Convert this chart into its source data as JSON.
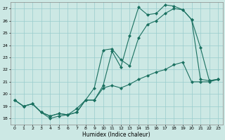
{
  "xlabel": "Humidex (Indice chaleur)",
  "xlim": [
    -0.5,
    23.5
  ],
  "ylim": [
    17.5,
    27.5
  ],
  "yticks": [
    18,
    19,
    20,
    21,
    22,
    23,
    24,
    25,
    26,
    27
  ],
  "xticks": [
    0,
    1,
    2,
    3,
    4,
    5,
    6,
    7,
    8,
    9,
    10,
    11,
    12,
    13,
    14,
    15,
    16,
    17,
    18,
    19,
    20,
    21,
    22,
    23
  ],
  "bg_color": "#cce8e4",
  "line_color": "#1a7060",
  "grid_color": "#99cccc",
  "lines": [
    {
      "x": [
        0,
        1,
        2,
        3,
        4,
        5,
        6,
        7,
        8,
        9,
        10,
        11,
        12,
        13,
        14,
        15,
        16,
        17,
        18,
        19,
        20,
        21,
        22,
        23
      ],
      "y": [
        19.5,
        19.0,
        19.2,
        18.5,
        18.0,
        18.2,
        18.3,
        18.8,
        19.5,
        19.5,
        20.7,
        23.5,
        22.2,
        24.8,
        27.1,
        26.5,
        26.6,
        27.3,
        27.2,
        26.9,
        26.1,
        21.2,
        21.1,
        21.2
      ]
    },
    {
      "x": [
        0,
        1,
        2,
        3,
        4,
        5,
        6,
        7,
        8,
        9,
        10,
        11,
        12,
        13,
        14,
        15,
        16,
        17,
        18,
        19,
        20,
        21,
        22,
        23
      ],
      "y": [
        19.5,
        19.0,
        19.2,
        18.5,
        18.2,
        18.4,
        18.3,
        18.5,
        19.5,
        20.5,
        23.6,
        23.7,
        22.8,
        22.3,
        24.6,
        25.7,
        26.0,
        26.6,
        27.0,
        26.9,
        26.1,
        23.8,
        21.1,
        21.2
      ]
    },
    {
      "x": [
        0,
        1,
        2,
        3,
        4,
        5,
        6,
        7,
        8,
        9,
        10,
        11,
        12,
        13,
        14,
        15,
        16,
        17,
        18,
        19,
        20,
        21,
        22,
        23
      ],
      "y": [
        19.5,
        19.0,
        19.2,
        18.5,
        18.2,
        18.4,
        18.3,
        18.5,
        19.5,
        19.5,
        20.5,
        20.7,
        20.5,
        20.8,
        21.2,
        21.5,
        21.8,
        22.0,
        22.4,
        22.6,
        21.0,
        21.0,
        21.0,
        21.2
      ]
    }
  ]
}
